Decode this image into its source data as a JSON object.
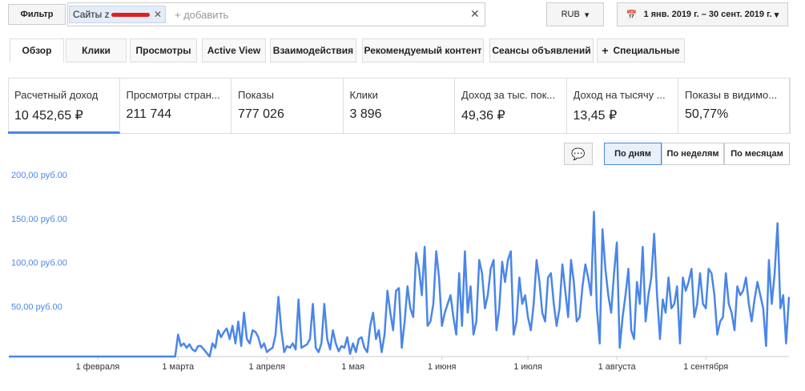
{
  "filter": {
    "label": "Фильтр",
    "chip": "Сайты z",
    "add": "+ добавить",
    "currency": "RUB",
    "date_range": "1 янв. 2019 г. – 30 сент. 2019 г."
  },
  "tabs": [
    "Обзор",
    "Клики",
    "Просмотры",
    "Active View",
    "Взаимодействия",
    "Рекомендуемый контент",
    "Сеансы объявлений",
    "Специальные"
  ],
  "metrics": [
    {
      "label": "Расчетный доход",
      "value": "10 452,65 ₽"
    },
    {
      "label": "Просмотры стран...",
      "value": "211 744"
    },
    {
      "label": "Показы",
      "value": "777 026"
    },
    {
      "label": "Клики",
      "value": "3 896"
    },
    {
      "label": "Доход за тыс. пок...",
      "value": "49,36 ₽"
    },
    {
      "label": "Доход на тысячу ...",
      "value": "13,45 ₽"
    },
    {
      "label": "Показы в видимо...",
      "value": "50,77%"
    }
  ],
  "views": [
    "По дням",
    "По неделям",
    "По месяцам"
  ],
  "chart": {
    "type": "line",
    "color": "#4a86e8",
    "ylim": [
      0,
      200
    ],
    "yticks": [
      {
        "value": 50,
        "label": "50,00 руб.00"
      },
      {
        "value": 100,
        "label": "100,00 руб.00"
      },
      {
        "value": 150,
        "label": "150,00 руб.00"
      },
      {
        "value": 200,
        "label": "200,00 руб.00"
      }
    ],
    "xlim": [
      0,
      272
    ],
    "xticks": [
      {
        "value": 31,
        "label": "1 февраля"
      },
      {
        "value": 59,
        "label": "1 марта"
      },
      {
        "value": 90,
        "label": "1 апреля"
      },
      {
        "value": 120,
        "label": "1 мая"
      },
      {
        "value": 151,
        "label": "1 июня"
      },
      {
        "value": 181,
        "label": "1 июля"
      },
      {
        "value": 212,
        "label": "1 августа"
      },
      {
        "value": 243,
        "label": "1 сентября"
      }
    ],
    "values": [
      0,
      0,
      0,
      0,
      0,
      0,
      0,
      0,
      0,
      0,
      0,
      0,
      0,
      0,
      0,
      0,
      0,
      0,
      0,
      0,
      0,
      0,
      0,
      0,
      0,
      0,
      0,
      0,
      0,
      0,
      0,
      0,
      0,
      0,
      0,
      0,
      0,
      0,
      0,
      0,
      0,
      0,
      0,
      0,
      0,
      0,
      0,
      0,
      0,
      0,
      0,
      0,
      0,
      0,
      0,
      0,
      0,
      0,
      0,
      25,
      12,
      15,
      10,
      14,
      8,
      6,
      12,
      12,
      8,
      4,
      0,
      15,
      10,
      30,
      22,
      28,
      32,
      20,
      35,
      15,
      40,
      12,
      50,
      20,
      15,
      30,
      28,
      22,
      10,
      15,
      5,
      8,
      10,
      25,
      68,
      30,
      5,
      12,
      10,
      15,
      8,
      65,
      10,
      12,
      14,
      20,
      60,
      10,
      5,
      15,
      60,
      20,
      8,
      30,
      15,
      6,
      12,
      10,
      22,
      3,
      15,
      5,
      20,
      22,
      10,
      5,
      35,
      50,
      20,
      30,
      5,
      25,
      75,
      50,
      30,
      75,
      78,
      10,
      40,
      80,
      55,
      45,
      118,
      100,
      70,
      125,
      35,
      40,
      60,
      120,
      90,
      35,
      50,
      60,
      70,
      45,
      25,
      95,
      35,
      120,
      50,
      80,
      25,
      40,
      110,
      95,
      55,
      70,
      100,
      110,
      30,
      55,
      108,
      85,
      110,
      120,
      25,
      40,
      90,
      60,
      70,
      45,
      30,
      60,
      110,
      85,
      50,
      40,
      90,
      95,
      60,
      35,
      55,
      105,
      75,
      45,
      110,
      85,
      40,
      45,
      80,
      105,
      90,
      70,
      165,
      55,
      15,
      145,
      100,
      70,
      50,
      95,
      130,
      10,
      45,
      70,
      100,
      30,
      20,
      85,
      60,
      125,
      40,
      70,
      90,
      140,
      70,
      20,
      65,
      50,
      90,
      55,
      60,
      80,
      15,
      90,
      75,
      85,
      100,
      45,
      60,
      95,
      60,
      55,
      100,
      95,
      70,
      25,
      40,
      45,
      95,
      60,
      50,
      30,
      80,
      70,
      75,
      90,
      60,
      40,
      65,
      85,
      70,
      55,
      12,
      110,
      60,
      95,
      152,
      55,
      70,
      15,
      68
    ]
  }
}
